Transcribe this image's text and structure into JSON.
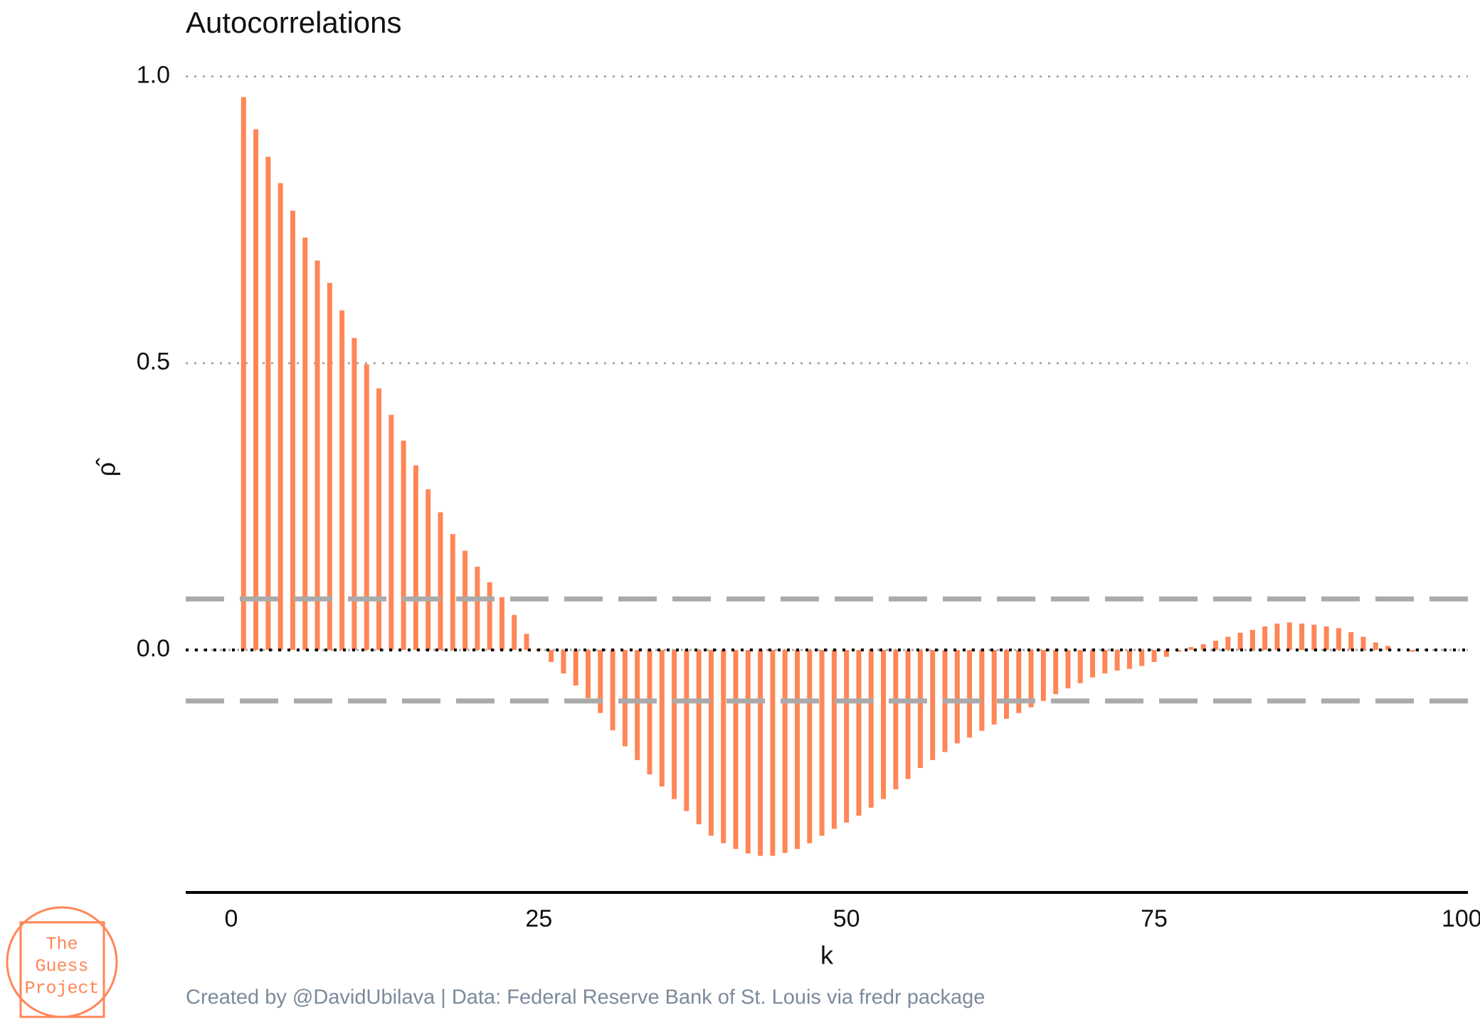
{
  "chart_data": {
    "type": "bar",
    "title": "Autocorrelations",
    "x_label": "k",
    "y_label": "ρ̂",
    "caption": "Created by @DavidUbilava | Data: Federal Reserve Bank of St. Louis via fredr package",
    "logo": [
      "The",
      "Guess",
      "Project"
    ],
    "x": [
      1,
      2,
      3,
      4,
      5,
      6,
      7,
      8,
      9,
      10,
      11,
      12,
      13,
      14,
      15,
      16,
      17,
      18,
      19,
      20,
      21,
      22,
      23,
      24,
      25,
      26,
      27,
      28,
      29,
      30,
      31,
      32,
      33,
      34,
      35,
      36,
      37,
      38,
      39,
      40,
      41,
      42,
      43,
      44,
      45,
      46,
      47,
      48,
      49,
      50,
      51,
      52,
      53,
      54,
      55,
      56,
      57,
      58,
      59,
      60,
      61,
      62,
      63,
      64,
      65,
      66,
      67,
      68,
      69,
      70,
      71,
      72,
      73,
      74,
      75,
      76,
      77,
      78,
      79,
      80,
      81,
      82,
      83,
      84,
      85,
      86,
      87,
      88,
      89,
      90,
      91,
      92,
      93,
      94,
      95,
      96
    ],
    "values": [
      0.964,
      0.908,
      0.86,
      0.814,
      0.766,
      0.719,
      0.679,
      0.64,
      0.592,
      0.544,
      0.498,
      0.456,
      0.41,
      0.365,
      0.322,
      0.28,
      0.24,
      0.202,
      0.173,
      0.145,
      0.118,
      0.092,
      0.061,
      0.028,
      0.002,
      -0.021,
      -0.041,
      -0.062,
      -0.084,
      -0.11,
      -0.14,
      -0.168,
      -0.192,
      -0.217,
      -0.238,
      -0.26,
      -0.281,
      -0.304,
      -0.324,
      -0.337,
      -0.347,
      -0.355,
      -0.359,
      -0.359,
      -0.354,
      -0.347,
      -0.337,
      -0.324,
      -0.312,
      -0.301,
      -0.289,
      -0.275,
      -0.26,
      -0.243,
      -0.225,
      -0.206,
      -0.192,
      -0.178,
      -0.163,
      -0.153,
      -0.141,
      -0.13,
      -0.12,
      -0.11,
      -0.1,
      -0.089,
      -0.077,
      -0.067,
      -0.058,
      -0.048,
      -0.041,
      -0.036,
      -0.033,
      -0.028,
      -0.021,
      -0.012,
      -0.003,
      0.005,
      0.01,
      0.016,
      0.023,
      0.03,
      0.035,
      0.041,
      0.046,
      0.048,
      0.046,
      0.044,
      0.041,
      0.038,
      0.031,
      0.023,
      0.013,
      0.007,
      0.001,
      -0.003
    ],
    "color": "#ff8657",
    "bands": [
      0.089,
      -0.089
    ],
    "xlim": [
      -3.7,
      100.5
    ],
    "xticks": [
      0,
      25,
      50,
      75,
      100
    ],
    "ylim": [
      -0.42,
      1.03
    ],
    "yticks": [
      {
        "value": 0,
        "label": "0.0"
      },
      0.5,
      {
        "value": 1,
        "label": "1.0"
      }
    ],
    "grid": true
  }
}
